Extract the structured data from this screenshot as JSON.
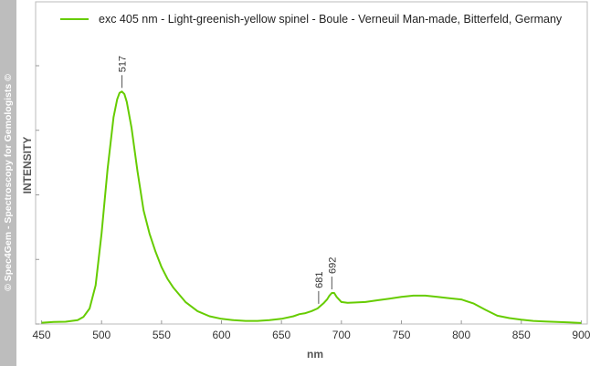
{
  "watermark": "© Spec4Gem - Spectroscopy for Gemologists ©",
  "chart_data": {
    "type": "line",
    "xlabel": "nm",
    "ylabel": "INTENSITY",
    "xlim": [
      445,
      905
    ],
    "ylim": [
      0,
      100
    ],
    "x_ticks": [
      450,
      500,
      550,
      600,
      650,
      700,
      750,
      800,
      850,
      900
    ],
    "y_ticks_labeled": false,
    "grid": false,
    "legend_position": "top",
    "series": [
      {
        "name": "exc 405 nm - Light-greenish-yellow spinel - Boule - Verneuil Man-made, Bitterfeld, Germany",
        "color": "#66cc00",
        "x": [
          450,
          460,
          470,
          480,
          485,
          490,
          495,
          500,
          505,
          510,
          513,
          515,
          517,
          519,
          521,
          525,
          530,
          535,
          540,
          545,
          550,
          555,
          560,
          570,
          580,
          590,
          600,
          610,
          620,
          630,
          640,
          650,
          660,
          665,
          670,
          675,
          680,
          685,
          688,
          690,
          692,
          694,
          696,
          700,
          705,
          710,
          720,
          730,
          740,
          750,
          760,
          770,
          780,
          790,
          800,
          810,
          820,
          830,
          840,
          850,
          860,
          870,
          880,
          890,
          900
        ],
        "y": [
          0.5,
          0.8,
          0.9,
          1.5,
          2.8,
          6,
          15,
          35,
          60,
          80,
          87,
          89.5,
          90,
          89,
          86,
          76,
          59,
          44,
          35,
          28,
          22,
          17.5,
          14,
          8.5,
          5,
          3,
          2,
          1.5,
          1.2,
          1.2,
          1.5,
          2,
          3,
          3.8,
          4.2,
          5,
          6,
          8,
          9.5,
          11,
          12,
          12,
          10.5,
          8.5,
          8.2,
          8.3,
          8.5,
          9.2,
          9.8,
          10.5,
          11,
          11,
          10.5,
          10,
          9.5,
          8,
          5.5,
          3.2,
          2.3,
          1.7,
          1.2,
          1,
          0.8,
          0.6,
          0.4
        ]
      }
    ],
    "annotations": [
      {
        "label": "517",
        "x": 517
      },
      {
        "label": "681",
        "x": 681
      },
      {
        "label": "692",
        "x": 692
      }
    ]
  }
}
